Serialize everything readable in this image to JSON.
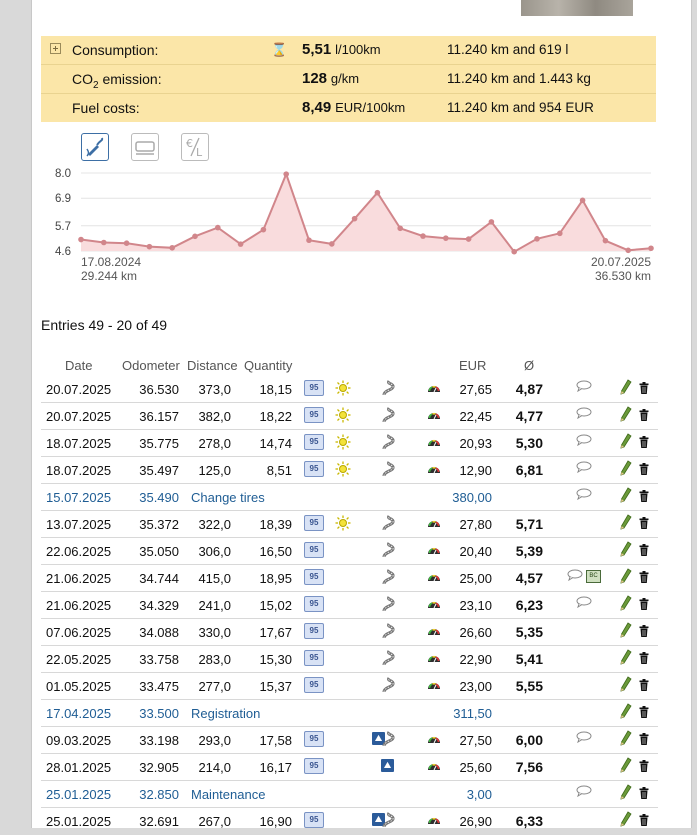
{
  "summary": [
    {
      "label": "Consumption:",
      "value": "5,51",
      "unit": "l/100km",
      "info": "11.240 km and 619 l"
    },
    {
      "label_pre": "CO",
      "label_sub": "2",
      "label_post": " emission:",
      "value": "128",
      "unit": "g/km",
      "info": "11.240 km and 1.443 kg"
    },
    {
      "label": "Fuel costs:",
      "value": "8,49",
      "unit": "EUR/100km",
      "info": "11.240 km and 954 EUR"
    }
  ],
  "chart_data": {
    "type": "area",
    "y_ticks": [
      "8.0",
      "6.9",
      "5.7",
      "4.6"
    ],
    "ylim": [
      4.6,
      8.0
    ],
    "x_start": {
      "date": "17.08.2024",
      "km": "29.244 km"
    },
    "x_end": {
      "date": "20.07.2025",
      "km": "36.530 km"
    },
    "values": [
      5.1,
      4.97,
      4.94,
      4.79,
      4.74,
      5.24,
      5.62,
      4.9,
      5.53,
      7.95,
      5.07,
      4.91,
      6.01,
      7.14,
      5.59,
      5.25,
      5.16,
      5.12,
      5.87,
      4.57,
      5.13,
      5.37,
      6.81,
      5.05,
      4.63,
      4.72
    ],
    "colors": {
      "line": "#d1868b",
      "fill": "#f9dcdd"
    }
  },
  "entries_label": "Entries 49 - 20 of 49",
  "headers": {
    "date": "Date",
    "odo": "Odometer",
    "dist": "Distance",
    "qty": "Quantity",
    "eur": "EUR",
    "avg": "Ø"
  },
  "rows": [
    {
      "t": "f",
      "date": "20.07.2025",
      "odo": "36.530",
      "dist": "373,0",
      "qty": "18,15",
      "sun": true,
      "road": true,
      "eur": "27,65",
      "avg": "4,87",
      "note": true
    },
    {
      "t": "f",
      "date": "20.07.2025",
      "odo": "36.157",
      "dist": "382,0",
      "qty": "18,22",
      "sun": true,
      "road": true,
      "eur": "22,45",
      "avg": "4,77",
      "note": true
    },
    {
      "t": "f",
      "date": "18.07.2025",
      "odo": "35.775",
      "dist": "278,0",
      "qty": "14,74",
      "sun": true,
      "road": true,
      "eur": "20,93",
      "avg": "5,30",
      "note": true
    },
    {
      "t": "f",
      "date": "18.07.2025",
      "odo": "35.497",
      "dist": "125,0",
      "qty": "8,51",
      "sun": true,
      "road": true,
      "eur": "12,90",
      "avg": "6,81",
      "note": true
    },
    {
      "t": "s",
      "date": "15.07.2025",
      "odo": "35.490",
      "name": "Change tires",
      "eur": "380,00",
      "note": true
    },
    {
      "t": "f",
      "date": "13.07.2025",
      "odo": "35.372",
      "dist": "322,0",
      "qty": "18,39",
      "sun": true,
      "road": true,
      "eur": "27,80",
      "avg": "5,71"
    },
    {
      "t": "f",
      "date": "22.06.2025",
      "odo": "35.050",
      "dist": "306,0",
      "qty": "16,50",
      "road": true,
      "eur": "20,40",
      "avg": "5,39"
    },
    {
      "t": "f",
      "date": "21.06.2025",
      "odo": "34.744",
      "dist": "415,0",
      "qty": "18,95",
      "road": true,
      "eur": "25,00",
      "avg": "4,57",
      "note": true,
      "bc": true
    },
    {
      "t": "f",
      "date": "21.06.2025",
      "odo": "34.329",
      "dist": "241,0",
      "qty": "15,02",
      "road": true,
      "eur": "23,10",
      "avg": "6,23",
      "note": true
    },
    {
      "t": "f",
      "date": "07.06.2025",
      "odo": "34.088",
      "dist": "330,0",
      "qty": "17,67",
      "road": true,
      "eur": "26,60",
      "avg": "5,35"
    },
    {
      "t": "f",
      "date": "22.05.2025",
      "odo": "33.758",
      "dist": "283,0",
      "qty": "15,30",
      "road": true,
      "eur": "22,90",
      "avg": "5,41"
    },
    {
      "t": "f",
      "date": "01.05.2025",
      "odo": "33.475",
      "dist": "277,0",
      "qty": "15,37",
      "road": true,
      "eur": "23,00",
      "avg": "5,55"
    },
    {
      "t": "s",
      "date": "17.04.2025",
      "odo": "33.500",
      "name": "Registration",
      "eur": "311,50"
    },
    {
      "t": "f",
      "date": "09.03.2025",
      "odo": "33.198",
      "dist": "293,0",
      "qty": "17,58",
      "hw": true,
      "road": true,
      "eur": "27,50",
      "avg": "6,00",
      "note": true
    },
    {
      "t": "f",
      "date": "28.01.2025",
      "odo": "32.905",
      "dist": "214,0",
      "qty": "16,17",
      "hw": true,
      "eur": "25,60",
      "avg": "7,56"
    },
    {
      "t": "s",
      "date": "25.01.2025",
      "odo": "32.850",
      "name": "Maintenance",
      "eur": "3,00",
      "note": true
    },
    {
      "t": "f",
      "date": "25.01.2025",
      "odo": "32.691",
      "dist": "267,0",
      "qty": "16,90",
      "hw": true,
      "road": true,
      "eur": "26,90",
      "avg": "6,33"
    }
  ],
  "badge_label": "95",
  "hw_glyph": "⛰",
  "bc_label": "BC"
}
